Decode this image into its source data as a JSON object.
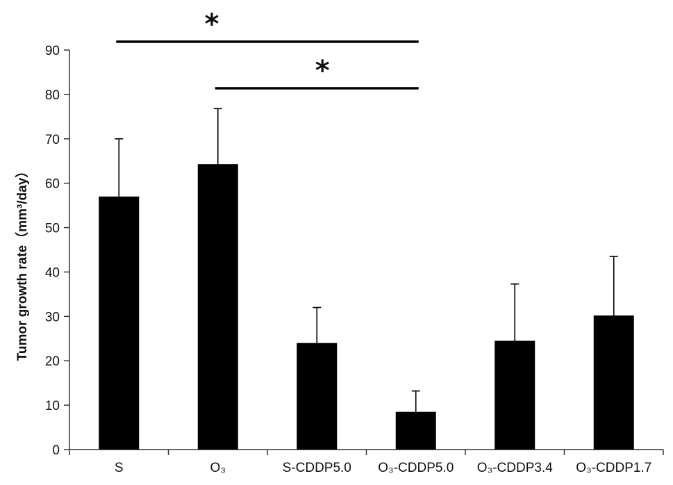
{
  "chart_data": {
    "type": "bar",
    "title": "",
    "ylabel": "Tumor growth rate（mm³/day）",
    "xlabel": "",
    "ylim": [
      0,
      90
    ],
    "yticks": [
      "0",
      "10",
      "20",
      "30",
      "40",
      "50",
      "60",
      "70",
      "80",
      "90"
    ],
    "categories": [
      "S",
      "O₃",
      "S-CDDP5.0",
      "O₃-CDDP5.0",
      "O₃-CDDP3.4",
      "O₃-CDDP1.7"
    ],
    "values": [
      57,
      64.3,
      24,
      8.5,
      24.5,
      30.2
    ],
    "error_upper": [
      13,
      12.5,
      8,
      4.7,
      12.8,
      13.3
    ],
    "bar_color": "#000000",
    "grid": false,
    "legend": "none",
    "annotations": [
      {
        "type": "significance",
        "from": "S",
        "to": "O₃-CDDP5.0",
        "label": "*"
      },
      {
        "type": "significance",
        "from": "O₃",
        "to": "O₃-CDDP5.0",
        "label": "*"
      }
    ]
  }
}
